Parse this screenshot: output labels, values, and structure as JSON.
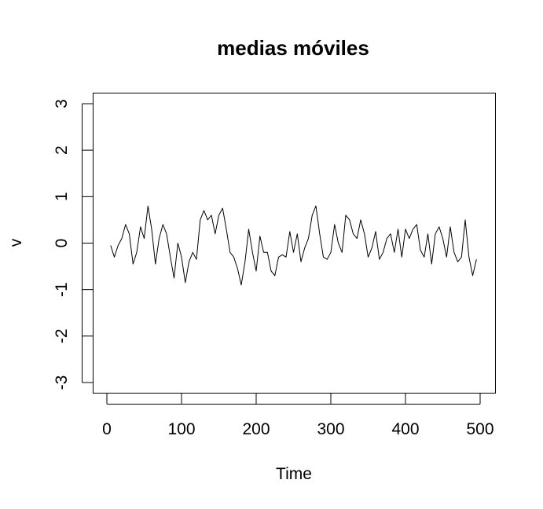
{
  "chart_data": {
    "type": "line",
    "title": "medias móviles",
    "xlabel": "Time",
    "ylabel": "v",
    "xlim": [
      0,
      500
    ],
    "ylim": [
      -3,
      3
    ],
    "xticks": [
      0,
      100,
      200,
      300,
      400,
      500
    ],
    "yticks": [
      -3,
      -2,
      -1,
      0,
      1,
      2,
      3
    ],
    "xtick_labels": [
      "0",
      "100",
      "200",
      "300",
      "400",
      "500"
    ],
    "ytick_labels": [
      "-3",
      "-2",
      "-1",
      "0",
      "1",
      "2",
      "3"
    ],
    "grid": false,
    "series": [
      {
        "color": "#000000",
        "x": [
          5,
          10,
          15,
          20,
          25,
          30,
          35,
          40,
          45,
          50,
          55,
          60,
          65,
          70,
          75,
          80,
          85,
          90,
          95,
          100,
          105,
          110,
          115,
          120,
          125,
          130,
          135,
          140,
          145,
          150,
          155,
          160,
          165,
          170,
          175,
          180,
          185,
          190,
          195,
          200,
          205,
          210,
          215,
          220,
          225,
          230,
          235,
          240,
          245,
          250,
          255,
          260,
          265,
          270,
          275,
          280,
          285,
          290,
          295,
          300,
          305,
          310,
          315,
          320,
          325,
          330,
          335,
          340,
          345,
          350,
          355,
          360,
          365,
          370,
          375,
          380,
          385,
          390,
          395,
          400,
          405,
          410,
          415,
          420,
          425,
          430,
          435,
          440,
          445,
          450,
          455,
          460,
          465,
          470,
          475,
          480,
          485,
          490,
          495
        ],
        "y": [
          -0.05,
          -0.3,
          -0.05,
          0.1,
          0.4,
          0.2,
          -0.45,
          -0.2,
          0.35,
          0.1,
          0.8,
          0.3,
          -0.45,
          0.1,
          0.4,
          0.2,
          -0.3,
          -0.75,
          0.0,
          -0.3,
          -0.85,
          -0.4,
          -0.2,
          -0.35,
          0.5,
          0.7,
          0.5,
          0.6,
          0.2,
          0.6,
          0.75,
          0.3,
          -0.2,
          -0.3,
          -0.55,
          -0.9,
          -0.4,
          0.3,
          -0.2,
          -0.6,
          0.15,
          -0.2,
          -0.2,
          -0.6,
          -0.7,
          -0.3,
          -0.25,
          -0.3,
          0.25,
          -0.2,
          0.2,
          -0.4,
          -0.1,
          0.1,
          0.6,
          0.8,
          0.2,
          -0.3,
          -0.35,
          -0.2,
          0.4,
          0.0,
          -0.2,
          0.6,
          0.5,
          0.2,
          0.1,
          0.5,
          0.2,
          -0.3,
          -0.1,
          0.25,
          -0.35,
          -0.2,
          0.1,
          0.2,
          -0.2,
          0.3,
          -0.3,
          0.3,
          0.1,
          0.3,
          0.4,
          -0.15,
          -0.3,
          0.2,
          -0.45,
          0.2,
          0.35,
          0.1,
          -0.3,
          0.35,
          -0.2,
          -0.4,
          -0.3,
          0.5,
          -0.3,
          -0.7,
          -0.35
        ]
      }
    ]
  }
}
